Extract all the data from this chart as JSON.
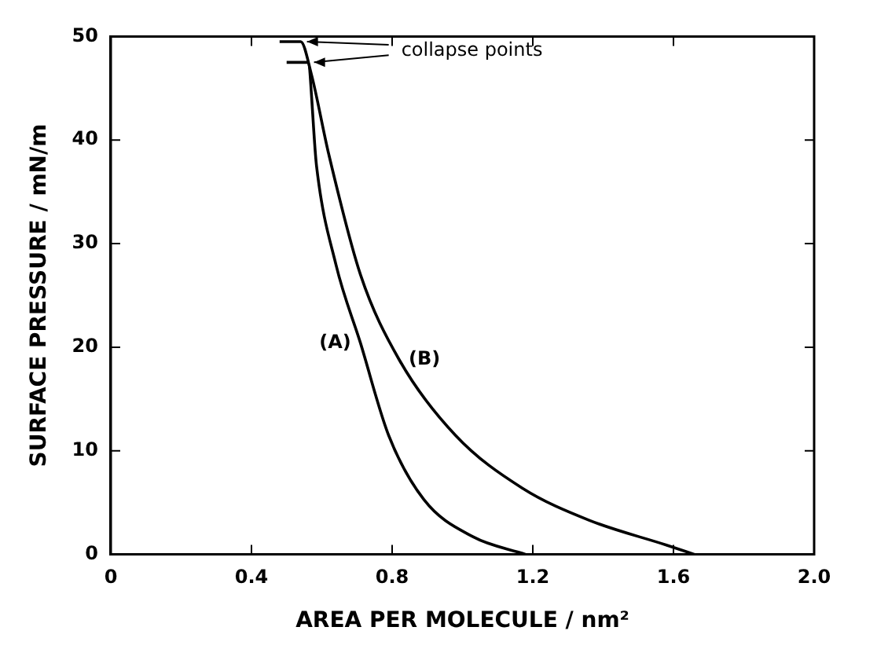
{
  "chart_data": {
    "type": "line",
    "xlabel": "AREA PER MOLECULE / nm²",
    "ylabel": "SURFACE PRESSURE / mN/m",
    "xlim": [
      0,
      2
    ],
    "ylim": [
      0,
      50
    ],
    "xticks": [
      0,
      0.4,
      0.8,
      1.2,
      1.6,
      {
        "value": 2,
        "label": "2.0"
      }
    ],
    "yticks": [
      0,
      10,
      20,
      30,
      40,
      50
    ],
    "grid": false,
    "legend": false,
    "marker": "none",
    "line_style": "solid",
    "annotations": [
      {
        "text": "collapse points",
        "x": 0.54,
        "y": 49.5
      }
    ],
    "series": [
      {
        "name": "(A)",
        "color": "#000000",
        "x": [
          0.5,
          0.56,
          0.585,
          0.64,
          0.71,
          0.79,
          0.89,
          1.03,
          1.18
        ],
        "values": [
          47.5,
          47.5,
          37.5,
          28,
          20.4,
          11.5,
          5.3,
          1.7,
          0
        ]
      },
      {
        "name": "(B)",
        "color": "#000000",
        "x": [
          0.48,
          0.54,
          0.57,
          0.62,
          0.71,
          0.82,
          0.98,
          1.17,
          1.36,
          1.58,
          1.66
        ],
        "values": [
          49.5,
          49.5,
          46.4,
          38.6,
          27,
          18.8,
          11.5,
          6.4,
          3.3,
          0.9,
          0
        ]
      }
    ]
  }
}
